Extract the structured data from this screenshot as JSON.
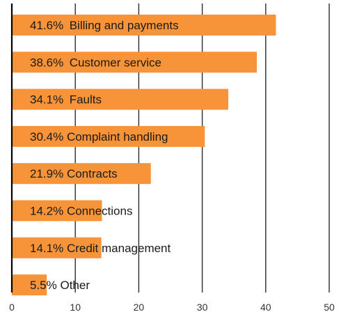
{
  "chart_data": {
    "type": "bar",
    "orientation": "horizontal",
    "title": "",
    "xlabel": "",
    "ylabel": "",
    "xlim": [
      0,
      50
    ],
    "x_ticks": [
      0,
      10,
      20,
      30,
      40,
      50
    ],
    "grid": "vertical",
    "bar_color": "#F7943A",
    "categories": [
      "Billing and payments",
      "Customer service",
      "Faults",
      "Complaint handling",
      "Contracts",
      "Connections",
      "Credit management",
      "Other"
    ],
    "values": [
      41.6,
      38.6,
      34.1,
      30.4,
      21.9,
      14.2,
      14.1,
      5.5
    ],
    "value_labels": [
      "41.6%",
      "38.6%",
      "34.1%",
      "30.4%",
      "21.9%",
      "14.2%",
      "14.1%",
      "5.5%"
    ]
  }
}
